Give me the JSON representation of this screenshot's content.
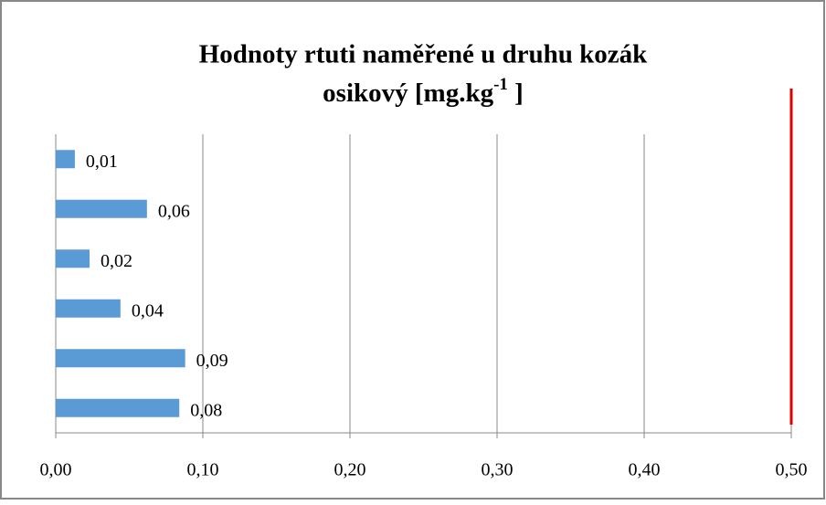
{
  "chart_data": {
    "type": "bar",
    "orientation": "horizontal",
    "title_lines": [
      "Hodnoty rtuti naměřené u druhu kozák",
      "osikový [mg.kg"
    ],
    "title_superscript": "-1",
    "title_end": " ]",
    "categories": [
      null,
      null,
      null,
      null,
      null,
      null
    ],
    "values": [
      0.013,
      0.062,
      0.023,
      0.044,
      0.088,
      0.084
    ],
    "value_labels": [
      "0,01",
      "0,06",
      "0,02",
      "0,04",
      "0,09",
      "0,08"
    ],
    "color": "#5b9bd5",
    "xlim": [
      0,
      0.5
    ],
    "xticks": [
      {
        "value": 0,
        "label": "0,00"
      },
      {
        "value": 0.1,
        "label": "0,10"
      },
      {
        "value": 0.2,
        "label": "0,20"
      },
      {
        "value": 0.3,
        "label": "0,30"
      },
      {
        "value": 0.4,
        "label": "0,40"
      },
      {
        "value": 0.5,
        "label": "0,50"
      }
    ],
    "grid": true,
    "reference_line": {
      "value": 0.5,
      "color": "#e00000"
    }
  }
}
